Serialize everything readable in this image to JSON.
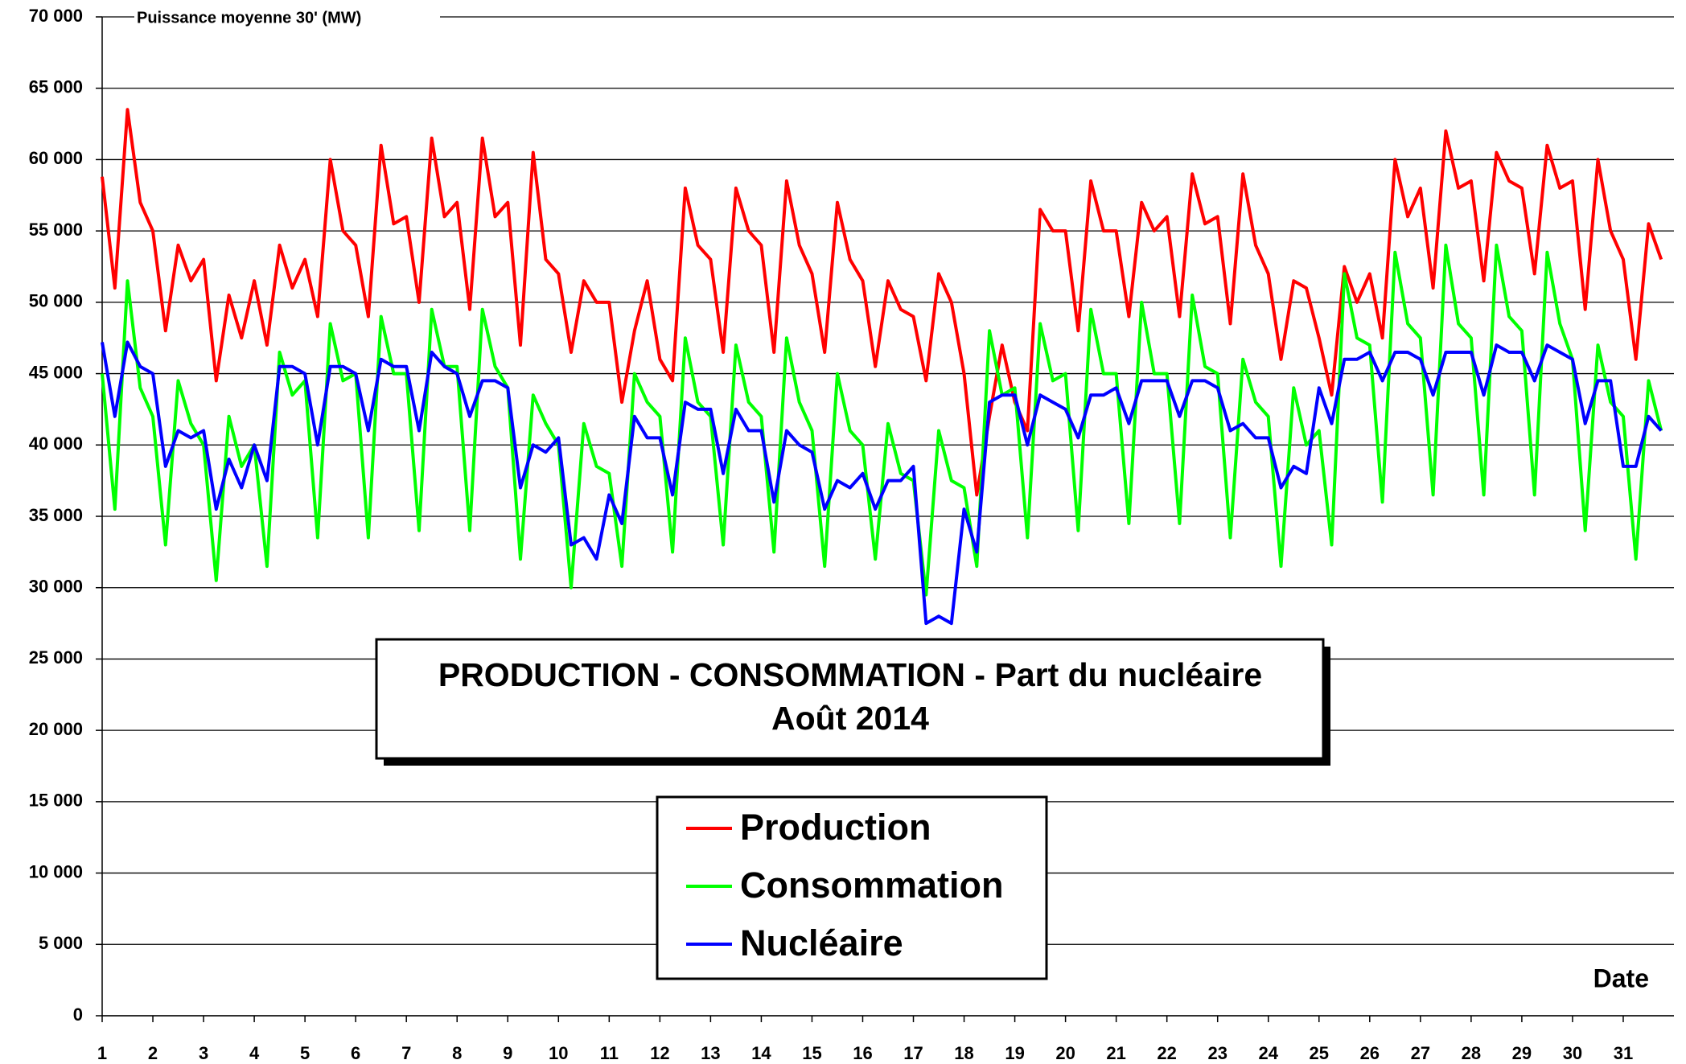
{
  "chart_data": {
    "type": "line",
    "title": "PRODUCTION - CONSOMMATION - Part du nucléaire",
    "subtitle": "Août 2014",
    "y_label": "Puissance moyenne 30' (MW)",
    "x_label": "Date",
    "xlim": [
      1,
      32
    ],
    "xticks": [
      1,
      2,
      3,
      4,
      5,
      6,
      7,
      8,
      9,
      10,
      11,
      12,
      13,
      14,
      15,
      16,
      17,
      18,
      19,
      20,
      21,
      22,
      23,
      24,
      25,
      26,
      27,
      28,
      29,
      30,
      31
    ],
    "ylim": [
      0,
      70000
    ],
    "yticks": [
      0,
      {
        "value": 5000,
        "label": "5 000"
      },
      {
        "value": 10000,
        "label": "10 000"
      },
      {
        "value": 15000,
        "label": "15 000"
      },
      {
        "value": 20000,
        "label": "20 000"
      },
      {
        "value": 25000,
        "label": "25 000"
      },
      {
        "value": 30000,
        "label": "30 000"
      },
      {
        "value": 35000,
        "label": "35 000"
      },
      {
        "value": 40000,
        "label": "40 000"
      },
      {
        "value": 45000,
        "label": "45 000"
      },
      {
        "value": 50000,
        "label": "50 000"
      },
      {
        "value": 55000,
        "label": "55 000"
      },
      {
        "value": 60000,
        "label": "60 000"
      },
      {
        "value": 65000,
        "label": "65 000"
      },
      {
        "value": 70000,
        "label": "70 000"
      }
    ],
    "grid": true,
    "x": [
      1,
      1.25,
      1.5,
      1.75,
      2,
      2.25,
      2.5,
      2.75,
      3,
      3.25,
      3.5,
      3.75,
      4,
      4.25,
      4.5,
      4.75,
      5,
      5.25,
      5.5,
      5.75,
      6,
      6.25,
      6.5,
      6.75,
      7,
      7.25,
      7.5,
      7.75,
      8,
      8.25,
      8.5,
      8.75,
      9,
      9.25,
      9.5,
      9.75,
      10,
      10.25,
      10.5,
      10.75,
      11,
      11.25,
      11.5,
      11.75,
      12,
      12.25,
      12.5,
      12.75,
      13,
      13.25,
      13.5,
      13.75,
      14,
      14.25,
      14.5,
      14.75,
      15,
      15.25,
      15.5,
      15.75,
      16,
      16.25,
      16.5,
      16.75,
      17,
      17.25,
      17.5,
      17.75,
      18,
      18.25,
      18.5,
      18.75,
      19,
      19.25,
      19.5,
      19.75,
      20,
      20.25,
      20.5,
      20.75,
      21,
      21.25,
      21.5,
      21.75,
      22,
      22.25,
      22.5,
      22.75,
      23,
      23.25,
      23.5,
      23.75,
      24,
      24.25,
      24.5,
      24.75,
      25,
      25.25,
      25.5,
      25.75,
      26,
      26.25,
      26.5,
      26.75,
      27,
      27.25,
      27.5,
      27.75,
      28,
      28.25,
      28.5,
      28.75,
      29,
      29.25,
      29.5,
      29.75,
      30,
      30.25,
      30.5,
      30.75,
      31,
      31.25,
      31.5,
      31.75
    ],
    "series": [
      {
        "name": "Production",
        "color": "#ff0000",
        "values": [
          58800,
          51000,
          63500,
          57000,
          55000,
          48000,
          54000,
          51500,
          53000,
          44500,
          50500,
          47500,
          51500,
          47000,
          54000,
          51000,
          53000,
          49000,
          60000,
          55000,
          54000,
          49000,
          61000,
          55500,
          56000,
          50000,
          61500,
          56000,
          57000,
          49500,
          61500,
          56000,
          57000,
          47000,
          60500,
          53000,
          52000,
          46500,
          51500,
          50000,
          50000,
          43000,
          48000,
          51500,
          46000,
          44500,
          58000,
          54000,
          53000,
          46500,
          58000,
          55000,
          54000,
          46500,
          58500,
          54000,
          52000,
          46500,
          57000,
          53000,
          51500,
          45500,
          51500,
          49500,
          49000,
          44500,
          52000,
          50000,
          45000,
          36500,
          42000,
          47000,
          43000,
          41000,
          56500,
          55000,
          55000,
          48000,
          58500,
          55000,
          55000,
          49000,
          57000,
          55000,
          56000,
          49000,
          59000,
          55500,
          56000,
          48500,
          59000,
          54000,
          52000,
          46000,
          51500,
          51000,
          47500,
          43500,
          52500,
          50000,
          52000,
          47500,
          60000,
          56000,
          58000,
          51000,
          62000,
          58000,
          58500,
          51500,
          60500,
          58500,
          58000,
          52000,
          61000,
          58000,
          58500,
          49500,
          60000,
          55000,
          53000,
          46000,
          55500,
          53000
        ]
      },
      {
        "name": "Consommation",
        "color": "#00ff00",
        "values": [
          45000,
          35500,
          51500,
          44000,
          42000,
          33000,
          44500,
          41500,
          40000,
          30500,
          42000,
          38500,
          40000,
          31500,
          46500,
          43500,
          44500,
          33500,
          48500,
          44500,
          45000,
          33500,
          49000,
          45000,
          45000,
          34000,
          49500,
          45500,
          45500,
          34000,
          49500,
          45500,
          44000,
          32000,
          43500,
          41500,
          40000,
          30000,
          41500,
          38500,
          38000,
          31500,
          45000,
          43000,
          42000,
          32500,
          47500,
          43000,
          42000,
          33000,
          47000,
          43000,
          42000,
          32500,
          47500,
          43000,
          41000,
          31500,
          45000,
          41000,
          40000,
          32000,
          41500,
          38000,
          37500,
          29500,
          41000,
          37500,
          37000,
          31500,
          48000,
          43500,
          44000,
          33500,
          48500,
          44500,
          45000,
          34000,
          49500,
          45000,
          45000,
          34500,
          50000,
          45000,
          45000,
          34500,
          50500,
          45500,
          45000,
          33500,
          46000,
          43000,
          42000,
          31500,
          44000,
          40000,
          41000,
          33000,
          52000,
          47500,
          47000,
          36000,
          53500,
          48500,
          47500,
          36500,
          54000,
          48500,
          47500,
          36500,
          54000,
          49000,
          48000,
          36500,
          53500,
          48500,
          46000,
          34000,
          47000,
          43000,
          42000,
          32000,
          44500,
          41000
        ]
      },
      {
        "name": "Nucléaire",
        "color": "#0000ff",
        "values": [
          47200,
          42000,
          47200,
          45500,
          45000,
          38500,
          41000,
          40500,
          41000,
          35500,
          39000,
          37000,
          40000,
          37500,
          45500,
          45500,
          45000,
          40000,
          45500,
          45500,
          45000,
          41000,
          46000,
          45500,
          45500,
          41000,
          46500,
          45500,
          45000,
          42000,
          44500,
          44500,
          44000,
          37000,
          40000,
          39500,
          40500,
          33000,
          33500,
          32000,
          36500,
          34500,
          42000,
          40500,
          40500,
          36500,
          43000,
          42500,
          42500,
          38000,
          42500,
          41000,
          41000,
          36000,
          41000,
          40000,
          39500,
          35500,
          37500,
          37000,
          38000,
          35500,
          37500,
          37500,
          38500,
          27500,
          28000,
          27500,
          35500,
          32500,
          43000,
          43500,
          43500,
          40000,
          43500,
          43000,
          42500,
          40500,
          43500,
          43500,
          44000,
          41500,
          44500,
          44500,
          44500,
          42000,
          44500,
          44500,
          44000,
          41000,
          41500,
          40500,
          40500,
          37000,
          38500,
          38000,
          44000,
          41500,
          46000,
          46000,
          46500,
          44500,
          46500,
          46500,
          46000,
          43500,
          46500,
          46500,
          46500,
          43500,
          47000,
          46500,
          46500,
          44500,
          47000,
          46500,
          46000,
          41500,
          44500,
          44500,
          38500,
          38500,
          42000,
          41000
        ]
      }
    ]
  }
}
